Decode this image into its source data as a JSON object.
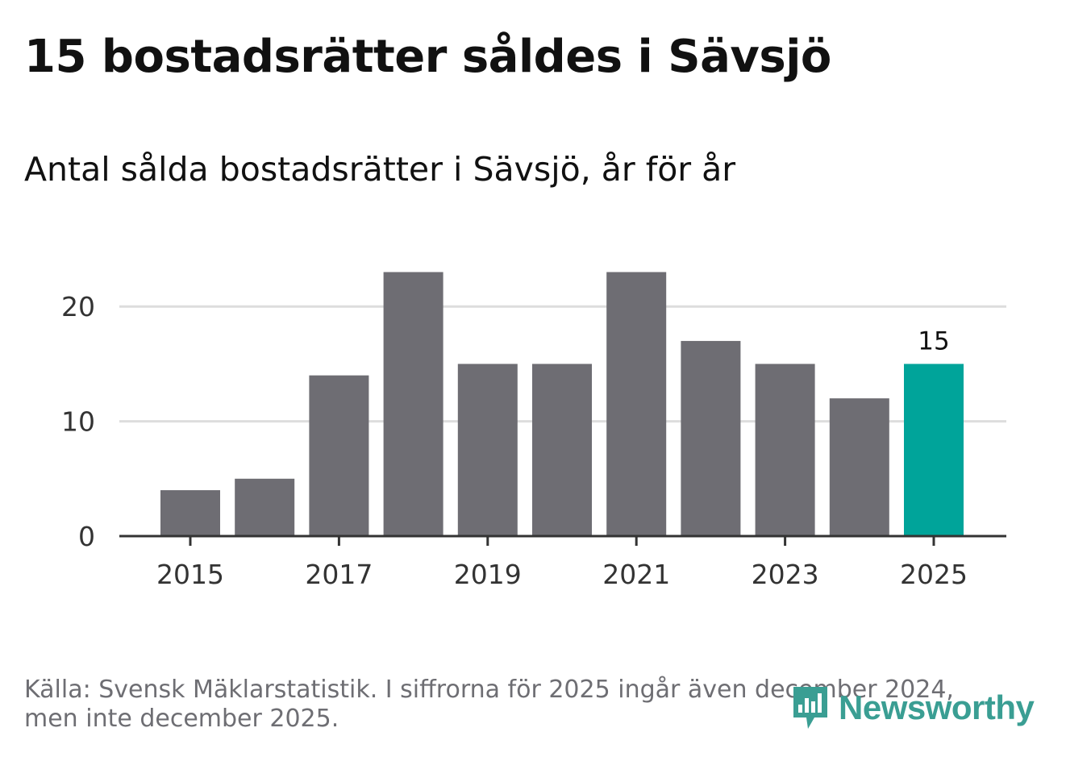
{
  "header": {
    "title": "15 bostadsrätter såldes i Sävsjö",
    "subtitle": "Antal sålda bostadsrätter i Sävsjö, år för år"
  },
  "chart_data": {
    "type": "bar",
    "title": "Antal sålda bostadsrätter i Sävsjö, år för år",
    "xlabel": "",
    "ylabel": "",
    "categories": [
      "2015",
      "2016",
      "2017",
      "2018",
      "2019",
      "2020",
      "2021",
      "2022",
      "2023",
      "2024",
      "2025"
    ],
    "values": [
      4,
      5,
      14,
      23,
      15,
      15,
      23,
      17,
      15,
      12,
      15
    ],
    "ylim": [
      0,
      25
    ],
    "yticks": [
      0,
      10,
      20
    ],
    "xticks": [
      "2015",
      "2017",
      "2019",
      "2021",
      "2023",
      "2025"
    ],
    "highlight": {
      "category": "2025",
      "label": "15"
    },
    "colors": {
      "bar": "#6e6d73",
      "highlight": "#00a49a",
      "grid": "#dddddd",
      "axis": "#333333"
    },
    "grid": true
  },
  "footer": {
    "source_line1": "Källa: Svensk Mäklarstatistik. I siffrorna för 2025 ingår även december 2024,",
    "source_line2": "men inte december 2025.",
    "logo_text": "Newsworthy"
  }
}
